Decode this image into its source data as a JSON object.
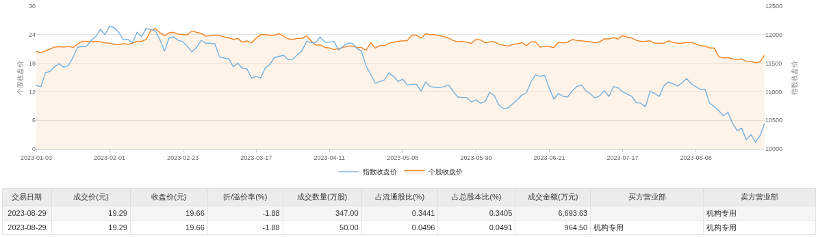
{
  "chart_data": [
    {
      "type": "line",
      "ylabel": "个股收盘价",
      "y2label": "指数收盘价",
      "ylim": [
        0,
        30
      ],
      "yticks": [
        0,
        6,
        12,
        18,
        24,
        30
      ],
      "y2lim": [
        10000,
        12500
      ],
      "y2ticks": [
        10000,
        10500,
        11000,
        11500,
        12000,
        12500
      ],
      "grid": "y",
      "legend": "bottom",
      "categories": [
        "2023-01-03",
        null,
        null,
        null,
        null,
        null,
        null,
        null,
        null,
        null,
        null,
        null,
        null,
        null,
        null,
        null,
        "2023-02-01",
        null,
        null,
        null,
        null,
        null,
        null,
        null,
        null,
        null,
        null,
        null,
        null,
        null,
        null,
        null,
        "2023-02-23",
        null,
        null,
        null,
        null,
        null,
        null,
        null,
        null,
        null,
        null,
        null,
        null,
        null,
        null,
        null,
        "2023-03-17",
        null,
        null,
        null,
        null,
        null,
        null,
        null,
        null,
        null,
        null,
        null,
        null,
        null,
        null,
        null,
        "2023-04-11",
        null,
        null,
        null,
        null,
        null,
        null,
        null,
        null,
        null,
        null,
        null,
        null,
        null,
        null,
        null,
        "2023-05-08",
        null,
        null,
        null,
        null,
        null,
        null,
        null,
        null,
        null,
        null,
        null,
        null,
        null,
        null,
        null,
        "2023-05-30",
        null,
        null,
        null,
        null,
        null,
        null,
        null,
        null,
        null,
        null,
        null,
        null,
        null,
        null,
        null,
        "2023-06-21",
        null,
        null,
        null,
        null,
        null,
        null,
        null,
        null,
        null,
        null,
        null,
        null,
        null,
        null,
        null,
        "2023-07-17",
        null,
        null,
        null,
        null,
        null,
        null,
        null,
        null,
        null,
        null,
        null,
        null,
        null,
        null,
        null,
        "2023-08-08",
        null,
        null,
        null,
        null,
        null,
        null,
        null,
        null,
        null,
        null,
        null,
        null,
        null,
        null,
        null
      ],
      "series": [
        {
          "name": "指数收盘价",
          "type": "line",
          "axis": "y2",
          "color": "#7ab3de",
          "values": [
            11110,
            11090,
            11330,
            11360,
            11440,
            11490,
            11430,
            11460,
            11600,
            11780,
            11790,
            11800,
            11900,
            11970,
            12090,
            12000,
            12150,
            12120,
            12040,
            11910,
            11920,
            11860,
            12040,
            11970,
            12110,
            12090,
            12070,
            11910,
            11710,
            11950,
            11960,
            11900,
            11880,
            11790,
            11700,
            11780,
            11900,
            11850,
            11850,
            11840,
            11610,
            11590,
            11580,
            11440,
            11500,
            11410,
            11400,
            11240,
            11270,
            11240,
            11420,
            11480,
            11600,
            11620,
            11640,
            11560,
            11570,
            11650,
            11720,
            11880,
            11860,
            11860,
            11960,
            11870,
            11870,
            11880,
            11730,
            11800,
            11850,
            11850,
            11760,
            11710,
            11450,
            11310,
            11150,
            11180,
            11210,
            11330,
            11270,
            11180,
            11220,
            11120,
            11130,
            11130,
            11010,
            11170,
            11090,
            11080,
            11070,
            11090,
            11120,
            11010,
            10910,
            10900,
            10900,
            10820,
            10860,
            10800,
            10830,
            10990,
            10930,
            10770,
            10700,
            10720,
            10790,
            10860,
            10940,
            10980,
            11170,
            11300,
            11270,
            11290,
            11060,
            10870,
            10970,
            10920,
            10910,
            11020,
            11090,
            11120,
            11020,
            10960,
            10890,
            10930,
            11020,
            10920,
            11090,
            11070,
            11000,
            10960,
            10920,
            10810,
            10800,
            10740,
            11010,
            10970,
            10920,
            11100,
            11170,
            11140,
            11100,
            11160,
            11230,
            11140,
            11090,
            11040,
            11040,
            10800,
            10740,
            10670,
            10580,
            10640,
            10450,
            10320,
            10360,
            10160,
            10250,
            10120,
            10230,
            10450
          ]
        },
        {
          "name": "个股收盘价",
          "type": "area",
          "axis": "y",
          "color": "#f5892a",
          "values": [
            20.5,
            20.2,
            20.6,
            21.0,
            21.4,
            21.5,
            21.4,
            21.6,
            21.3,
            22.0,
            22.6,
            22.6,
            22.5,
            22.6,
            22.5,
            22.3,
            22.2,
            22.0,
            21.9,
            22.1,
            22.0,
            22.2,
            22.6,
            22.6,
            23.0,
            25.0,
            25.3,
            24.4,
            23.8,
            24.4,
            24.5,
            24.1,
            24.0,
            24.0,
            24.8,
            24.5,
            24.3,
            23.7,
            23.8,
            23.9,
            23.9,
            23.5,
            23.4,
            23.0,
            23.2,
            22.4,
            22.7,
            22.3,
            23.3,
            24.0,
            24.0,
            23.9,
            23.9,
            24.2,
            23.7,
            23.1,
            23.0,
            23.2,
            23.2,
            23.8,
            22.7,
            21.8,
            21.9,
            21.3,
            21.2,
            20.9,
            21.1,
            21.3,
            21.6,
            21.6,
            21.3,
            21.3,
            20.7,
            22.3,
            21.2,
            21.7,
            21.7,
            22.2,
            22.4,
            22.6,
            22.7,
            22.8,
            23.9,
            23.9,
            23.3,
            24.2,
            24.0,
            24.0,
            23.8,
            23.6,
            23.3,
            22.8,
            22.5,
            22.6,
            22.4,
            22.2,
            23.0,
            22.9,
            22.3,
            22.5,
            22.5,
            22.0,
            21.8,
            21.6,
            22.0,
            22.1,
            22.3,
            21.7,
            22.5,
            22.5,
            21.4,
            21.6,
            21.5,
            21.3,
            22.4,
            22.3,
            22.4,
            23.0,
            22.8,
            22.7,
            22.6,
            22.5,
            22.3,
            22.5,
            23.1,
            23.1,
            23.4,
            23.1,
            23.8,
            23.5,
            23.3,
            22.8,
            22.6,
            22.6,
            22.7,
            22.2,
            22.2,
            22.2,
            22.7,
            22.4,
            22.2,
            22.2,
            22.4,
            22.4,
            22.0,
            21.7,
            21.6,
            21.2,
            21.2,
            19.4,
            19.1,
            19.2,
            18.9,
            18.8,
            18.9,
            18.4,
            18.4,
            18.1,
            18.3,
            19.7
          ]
        }
      ]
    },
    {
      "type": "other",
      "categories": [
        "交易日期",
        "成交价(元)",
        "收盘价(元)",
        "折/溢价率(%)",
        "成交数量(万股)",
        "占流通股比(%)",
        "占总股本比(%)",
        "成交金额(万元)",
        "买方营业部",
        "卖方营业部"
      ],
      "cell_labels": [
        [
          "2023-08-29",
          "19.29",
          "19.66",
          "-1.88",
          "347.00",
          "0.3441",
          "0.3405",
          "6,693.63",
          null,
          "机构专用"
        ],
        [
          "2023-08-29",
          "19.29",
          "19.66",
          "-1.88",
          "50.00",
          "0.0496",
          "0.0491",
          "964.50",
          "机构专用",
          "机构专用"
        ]
      ]
    }
  ]
}
